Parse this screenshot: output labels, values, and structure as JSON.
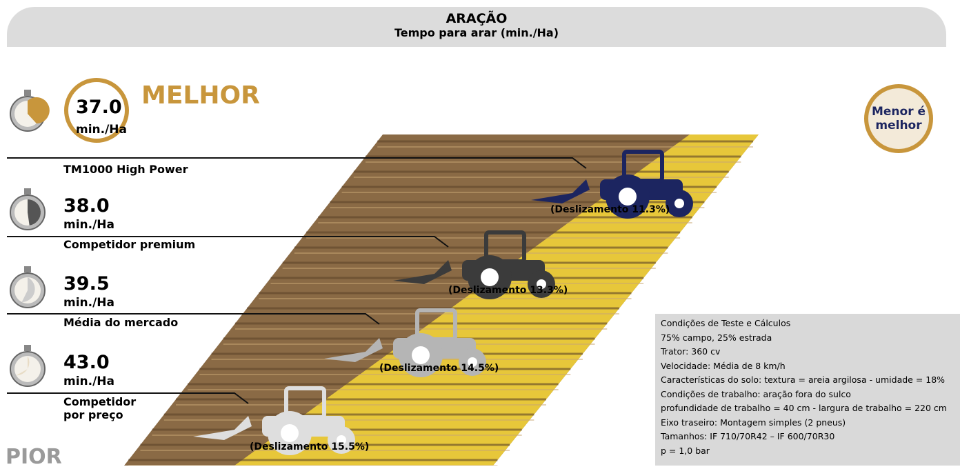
{
  "header": {
    "title": "ARAÇÃO",
    "subtitle": "Tempo para arar (min./Ha)"
  },
  "best_label": "MELHOR",
  "worst_label": "PIOR",
  "badge": "Menor é melhor",
  "entries": [
    {
      "time": "37.0",
      "unit": "min./Ha",
      "name": "TM1000 High Power",
      "slip": "(Deslizamento 11.3%)"
    },
    {
      "time": "38.0",
      "unit": "min./Ha",
      "name": "Competidor premium",
      "slip": "(Deslizamento 13.3%)"
    },
    {
      "time": "39.5",
      "unit": "min./Ha",
      "name": "Média do mercado",
      "slip": "(Deslizamento 14.5%)"
    },
    {
      "time": "43.0",
      "unit": "min./Ha",
      "name": "Competidor por preço",
      "slip": "(Deslizamento 15.5%)"
    }
  ],
  "notes": [
    "Condições de Teste e Cálculos",
    "75% campo, 25% estrada",
    "Trator: 360 cv",
    "Velocidade: Média de 8 km/h",
    "Características do solo: textura = areia argilosa - umidade = 18%",
    "Condições de trabalho: aração fora do sulco",
    "profundidade de trabalho = 40 cm - largura de trabalho = 220 cm",
    "Eixo traseiro: Montagem simples (2 pneus)",
    "Tamanhos: IF 710/70R42 – IF 600/70R30",
    "p = 1,0 bar"
  ]
}
